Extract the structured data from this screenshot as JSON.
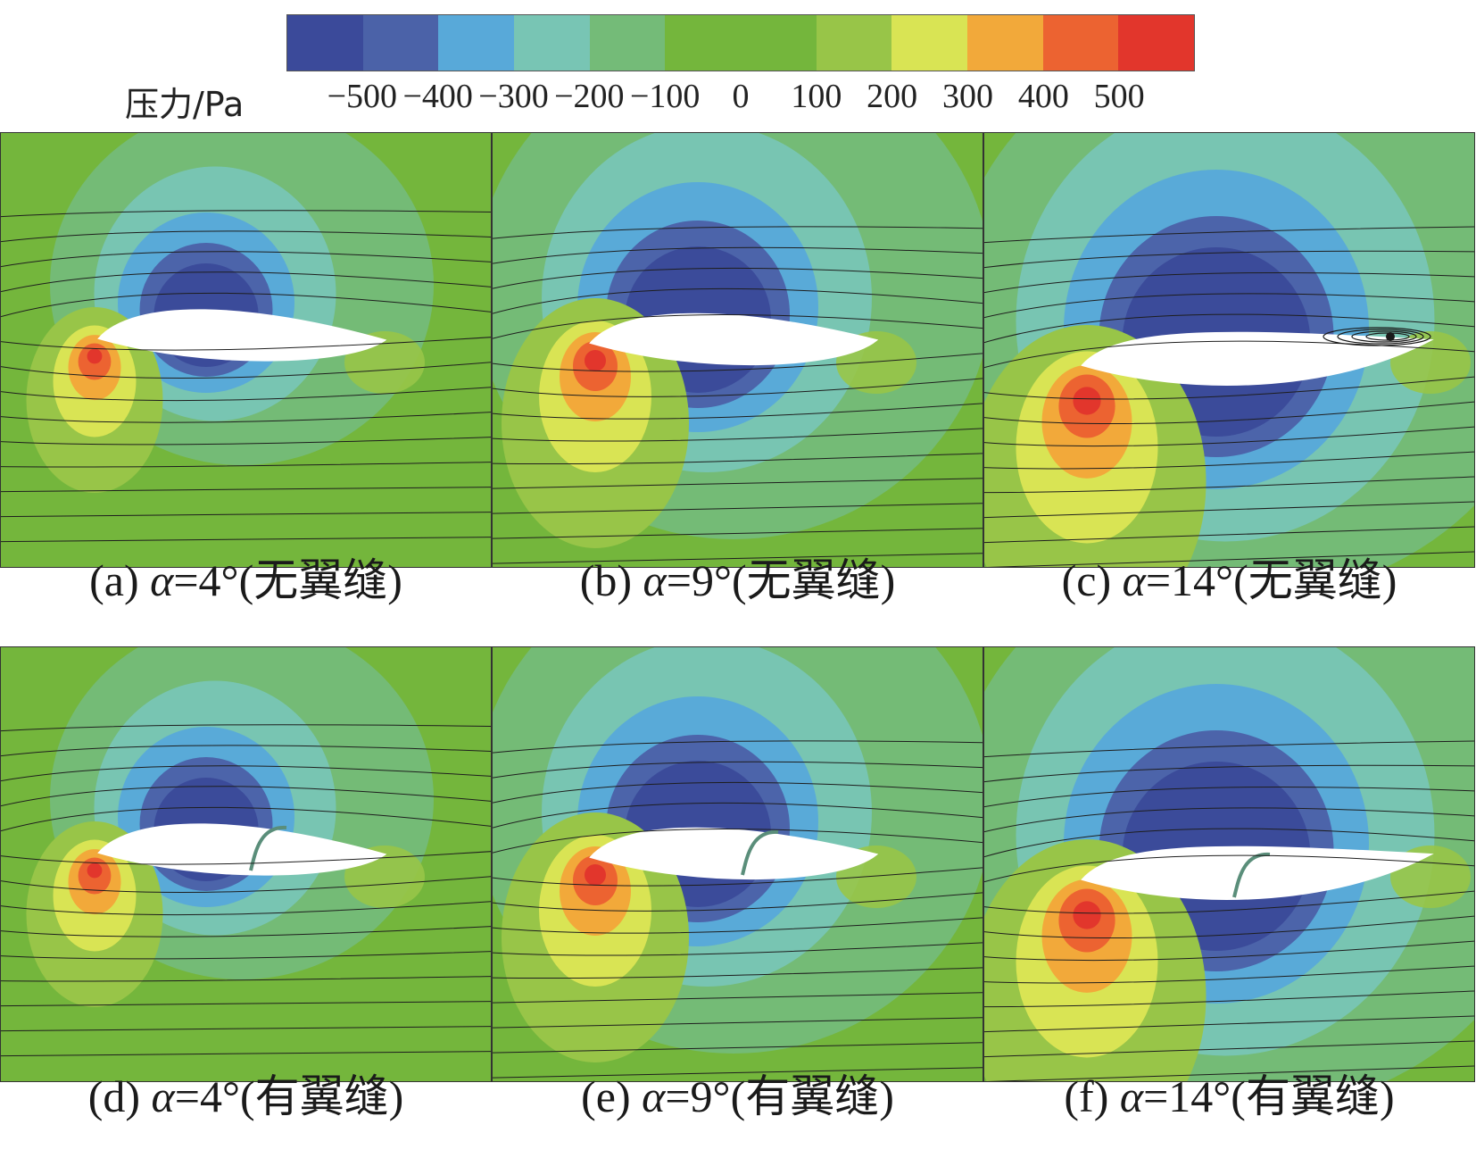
{
  "legend": {
    "unit_label": "压力/Pa",
    "ticks": [
      "−500",
      "−400",
      "−300",
      "−200",
      "−100",
      "0",
      "100",
      "200",
      "300",
      "400",
      "500"
    ],
    "colors": [
      "#3b4a9a",
      "#4b62a8",
      "#58a9d9",
      "#78c5b4",
      "#74bb78",
      "#74b63c",
      "#74b63c",
      "#98c548",
      "#d9e454",
      "#f2a93a",
      "#ec6331",
      "#e2362c"
    ]
  },
  "panels": [
    {
      "id": "a",
      "letter": "(a)",
      "alpha": "α",
      "angle": "=4°",
      "desc": "(无翼缝)"
    },
    {
      "id": "b",
      "letter": "(b)",
      "alpha": "α",
      "angle": "=9°",
      "desc": "(无翼缝)"
    },
    {
      "id": "c",
      "letter": "(c)",
      "alpha": "α",
      "angle": "=14°",
      "desc": "(无翼缝)"
    },
    {
      "id": "d",
      "letter": "(d)",
      "alpha": "α",
      "angle": "=4°",
      "desc": "(有翼缝)"
    },
    {
      "id": "e",
      "letter": "(e)",
      "alpha": "α",
      "angle": "=9°",
      "desc": "(有翼缝)"
    },
    {
      "id": "f",
      "letter": "(f)",
      "alpha": "α",
      "angle": "=14°",
      "desc": "(有翼缝)"
    }
  ]
}
